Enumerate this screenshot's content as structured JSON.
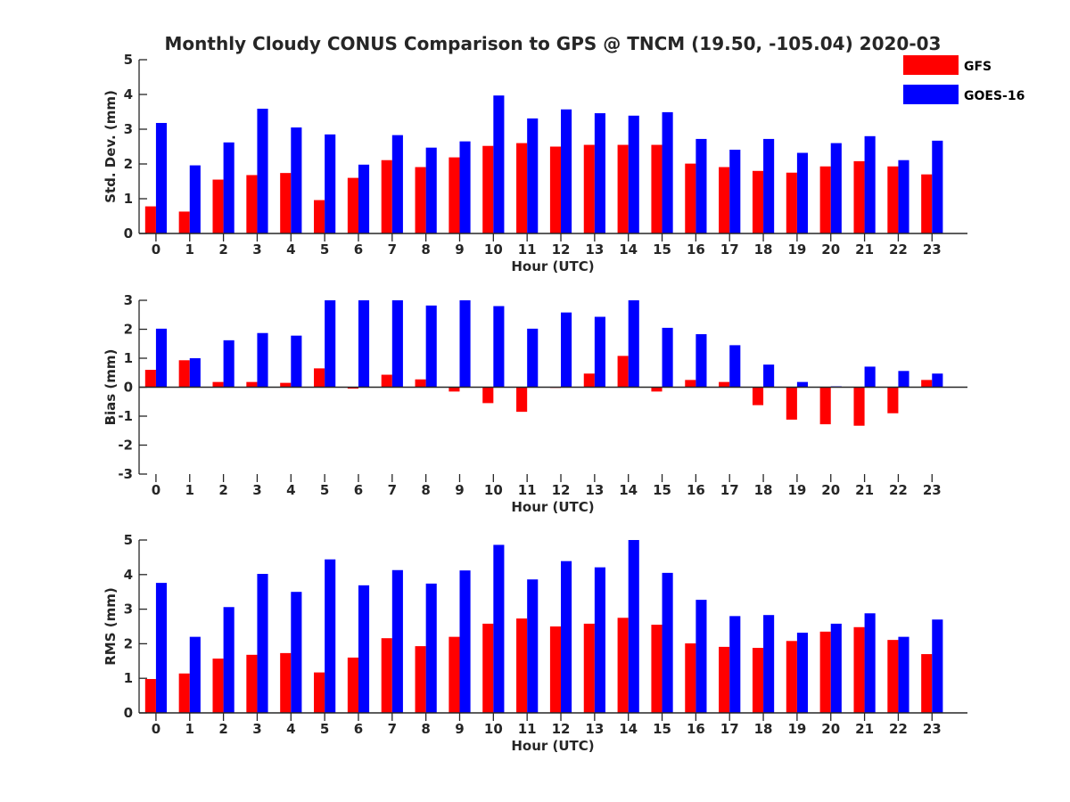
{
  "colors": {
    "GFS": "#ff0000",
    "GOES-16": "#0000ff",
    "axis": "#262626"
  },
  "chart_data": [
    {
      "type": "bar",
      "title": "Monthly Cloudy CONUS Comparison to GPS @ TNCM (19.50, -105.04) 2020-03",
      "xlabel": "Hour (UTC)",
      "ylabel": "Std. Dev. (mm)",
      "ylim": [
        0,
        5
      ],
      "yticks": [
        0,
        1,
        2,
        3,
        4,
        5
      ],
      "grid": false,
      "legend_position": "top-right",
      "categories": [
        "0",
        "1",
        "2",
        "3",
        "4",
        "5",
        "6",
        "7",
        "8",
        "9",
        "10",
        "11",
        "12",
        "13",
        "14",
        "15",
        "16",
        "17",
        "18",
        "19",
        "20",
        "21",
        "22",
        "23"
      ],
      "series": [
        {
          "name": "GFS",
          "values": [
            0.78,
            0.63,
            1.55,
            1.68,
            1.74,
            0.96,
            1.6,
            2.11,
            1.91,
            2.19,
            2.52,
            2.6,
            2.5,
            2.55,
            2.55,
            2.55,
            2.01,
            1.91,
            1.8,
            1.75,
            1.93,
            2.08,
            1.93,
            1.7
          ]
        },
        {
          "name": "GOES-16",
          "values": [
            3.18,
            1.96,
            2.62,
            3.59,
            3.05,
            2.85,
            1.98,
            2.83,
            2.47,
            2.65,
            3.97,
            3.31,
            3.57,
            3.46,
            3.39,
            3.49,
            2.72,
            2.41,
            2.72,
            2.32,
            2.6,
            2.8,
            2.11,
            2.67
          ]
        }
      ]
    },
    {
      "type": "bar",
      "xlabel": "Hour (UTC)",
      "ylabel": "Bias (mm)",
      "ylim": [
        -3,
        3
      ],
      "yticks": [
        -3,
        -2,
        -1,
        0,
        1,
        2,
        3
      ],
      "grid": false,
      "categories": [
        "0",
        "1",
        "2",
        "3",
        "4",
        "5",
        "6",
        "7",
        "8",
        "9",
        "10",
        "11",
        "12",
        "13",
        "14",
        "15",
        "16",
        "17",
        "18",
        "19",
        "20",
        "21",
        "22",
        "23"
      ],
      "series": [
        {
          "name": "GFS",
          "values": [
            0.6,
            0.93,
            0.18,
            0.18,
            0.15,
            0.65,
            -0.05,
            0.43,
            0.27,
            -0.15,
            -0.55,
            -0.85,
            0.0,
            0.47,
            1.08,
            -0.15,
            0.25,
            0.18,
            -0.62,
            -1.12,
            -1.28,
            -1.33,
            -0.9,
            0.25
          ]
        },
        {
          "name": "GOES-16",
          "values": [
            2.02,
            1.0,
            1.62,
            1.87,
            1.78,
            3.0,
            3.0,
            3.0,
            2.82,
            3.0,
            2.8,
            2.02,
            2.58,
            2.43,
            3.0,
            2.05,
            1.83,
            1.45,
            0.78,
            0.18,
            0.03,
            0.71,
            0.56,
            0.47
          ]
        }
      ]
    },
    {
      "type": "bar",
      "xlabel": "Hour (UTC)",
      "ylabel": "RMS (mm)",
      "ylim": [
        0,
        5
      ],
      "yticks": [
        0,
        1,
        2,
        3,
        4,
        5
      ],
      "grid": false,
      "categories": [
        "0",
        "1",
        "2",
        "3",
        "4",
        "5",
        "6",
        "7",
        "8",
        "9",
        "10",
        "11",
        "12",
        "13",
        "14",
        "15",
        "16",
        "17",
        "18",
        "19",
        "20",
        "21",
        "22",
        "23"
      ],
      "series": [
        {
          "name": "GFS",
          "values": [
            0.98,
            1.14,
            1.57,
            1.68,
            1.73,
            1.17,
            1.6,
            2.16,
            1.93,
            2.2,
            2.58,
            2.73,
            2.5,
            2.58,
            2.75,
            2.55,
            2.01,
            1.91,
            1.88,
            2.08,
            2.35,
            2.48,
            2.11,
            1.7
          ]
        },
        {
          "name": "GOES-16",
          "values": [
            3.76,
            2.2,
            3.06,
            4.02,
            3.5,
            4.44,
            3.69,
            4.13,
            3.74,
            4.12,
            4.86,
            3.86,
            4.39,
            4.21,
            5.0,
            4.05,
            3.27,
            2.8,
            2.83,
            2.32,
            2.58,
            2.88,
            2.2,
            2.7
          ]
        }
      ]
    }
  ]
}
